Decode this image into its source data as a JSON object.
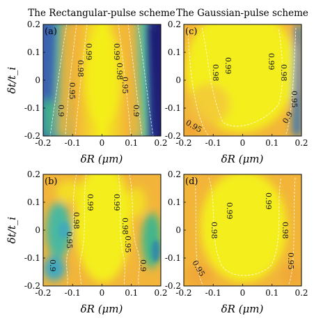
{
  "figure": {
    "column_titles": [
      "The Rectangular-pulse scheme",
      "The Gaussian-pulse scheme"
    ],
    "colors": {
      "high": "#f4ee1a",
      "mid": "#f2b53a",
      "low_green": "#3fb68a",
      "low_blue": "#2a3f9a",
      "dark": "#1e1a6e",
      "contour": "#ffffff"
    }
  },
  "chart_data": [
    {
      "type": "heatmap",
      "panel_label": "(a)",
      "xlabel": "δR (μm)",
      "ylabel": "δt/t_i",
      "xlim": [
        -0.2,
        0.2
      ],
      "ylim": [
        -0.2,
        0.2
      ],
      "xticks": [
        "-0.2",
        "-0.1",
        "0",
        "0.1",
        "0.2"
      ],
      "yticks": [
        "-0.2",
        "-0.1",
        "0",
        "0.1",
        "0.2"
      ],
      "contour_labels": [
        "0.99",
        "0.98",
        "0.95",
        "0.9",
        "0.99",
        "0.98",
        "0.95",
        "0.9"
      ]
    },
    {
      "type": "heatmap",
      "panel_label": "(c)",
      "xlabel": "δR (μm)",
      "ylabel": "",
      "xlim": [
        -0.2,
        0.2
      ],
      "ylim": [
        -0.2,
        0.2
      ],
      "xticks": [
        "-0.2",
        "-0.1",
        "0",
        "0.1",
        "0.2"
      ],
      "yticks": [
        "-0.2",
        "-0.1",
        "0",
        "0.1",
        "0.2"
      ],
      "contour_labels": [
        "0.98",
        "0.99",
        "0.99",
        "0.98",
        "0.95",
        "0.95",
        "0.9"
      ]
    },
    {
      "type": "heatmap",
      "panel_label": "(b)",
      "xlabel": "δR (μm)",
      "ylabel": "δt/t_i",
      "xlim": [
        -0.2,
        0.2
      ],
      "ylim": [
        -0.2,
        0.2
      ],
      "xticks": [
        "-0.2",
        "-0.1",
        "0",
        "0.1",
        "0.2"
      ],
      "yticks": [
        "-0.2",
        "-0.1",
        "0",
        "0.1",
        "0.2"
      ],
      "contour_labels": [
        "0.99",
        "0.98",
        "0.95",
        "0.9",
        "0.99",
        "0.98",
        "0.95",
        "0.9"
      ]
    },
    {
      "type": "heatmap",
      "panel_label": "(d)",
      "xlabel": "δR (μm)",
      "ylabel": "",
      "xlim": [
        -0.2,
        0.2
      ],
      "ylim": [
        -0.2,
        0.2
      ],
      "xticks": [
        "-0.2",
        "-0.1",
        "0",
        "0.1",
        "0.2"
      ],
      "yticks": [
        "-0.2",
        "-0.1",
        "0",
        "0.1",
        "0.2"
      ],
      "contour_labels": [
        "0.98",
        "0.99",
        "0.99",
        "0.98",
        "0.95",
        "0.95"
      ]
    }
  ]
}
